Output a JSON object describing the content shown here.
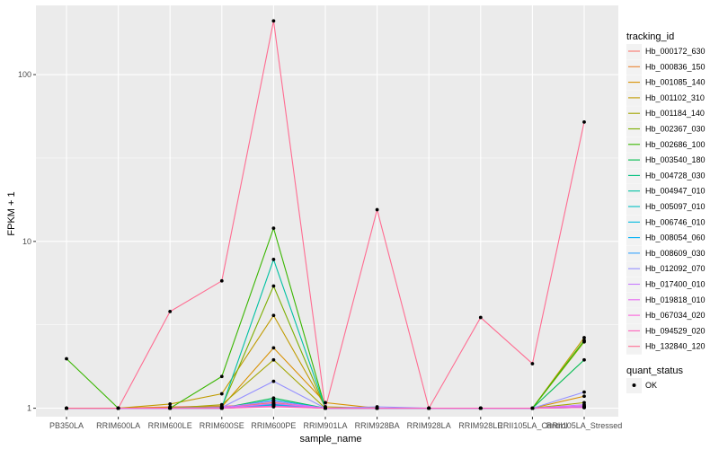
{
  "chart_data": {
    "type": "line",
    "xlabel": "sample_name",
    "ylabel": "FPKM + 1",
    "yscale": "log10",
    "ylim": [
      0.89,
      260
    ],
    "yticks": [
      1,
      10,
      100
    ],
    "ytick_labels": [
      "1",
      "10",
      "100"
    ],
    "grid": true,
    "legend_position": "right",
    "categories": [
      "PB350LA",
      "RRIM600LA",
      "RRIM600LE",
      "RRIM600SE",
      "RRIM600PE",
      "RRIM901LA",
      "RRIM928BA",
      "RRIM928LA",
      "RRIM928LE",
      "RRII105LA_Control",
      "RRII105LA_Stressed"
    ],
    "legend_title": "tracking_id",
    "series": [
      {
        "name": "Hb_000172_630",
        "color": "#F8766D",
        "values": [
          1,
          1,
          1.02,
          1.03,
          1.05,
          1,
          1,
          1,
          1,
          1,
          1.03
        ]
      },
      {
        "name": "Hb_000836_150",
        "color": "#EA8331",
        "values": [
          1,
          1,
          1,
          1.01,
          1.08,
          1,
          1,
          1,
          1,
          1,
          1.02
        ]
      },
      {
        "name": "Hb_001085_140",
        "color": "#D89000",
        "values": [
          1,
          1,
          1.01,
          1.02,
          2.3,
          1.08,
          1,
          1,
          1,
          1,
          1.18
        ]
      },
      {
        "name": "Hb_001102_310",
        "color": "#C09B00",
        "values": [
          1,
          1,
          1.06,
          1.22,
          3.6,
          1.02,
          1,
          1,
          1,
          1,
          2.65
        ]
      },
      {
        "name": "Hb_001184_140",
        "color": "#A3A500",
        "values": [
          1,
          1,
          1,
          1.05,
          1.95,
          1,
          1,
          1,
          1,
          1,
          1.08
        ]
      },
      {
        "name": "Hb_002367_030",
        "color": "#7CAE00",
        "values": [
          1,
          1,
          1,
          1.02,
          5.4,
          1,
          1,
          1,
          1,
          1,
          2.5
        ]
      },
      {
        "name": "Hb_002686_100",
        "color": "#39B600",
        "values": [
          1.98,
          1,
          1,
          1.55,
          12,
          1,
          1,
          1,
          1,
          1,
          2.55
        ]
      },
      {
        "name": "Hb_003540_180",
        "color": "#00BB4E",
        "values": [
          1,
          1,
          1,
          1,
          1.15,
          1,
          1,
          1,
          1,
          1,
          1.95
        ]
      },
      {
        "name": "Hb_004728_030",
        "color": "#00BF7D",
        "values": [
          1,
          1,
          1,
          1,
          1.05,
          1,
          1,
          1,
          1,
          1,
          1.02
        ]
      },
      {
        "name": "Hb_004947_010",
        "color": "#00C1A3",
        "values": [
          1,
          1,
          1,
          1.01,
          7.8,
          1,
          1,
          1,
          1,
          1,
          1.02
        ]
      },
      {
        "name": "Hb_005097_010",
        "color": "#00BFC4",
        "values": [
          1,
          1,
          1,
          1,
          1.03,
          1,
          1,
          1,
          1,
          1,
          1.01
        ]
      },
      {
        "name": "Hb_006746_010",
        "color": "#00BAE0",
        "values": [
          1,
          1,
          1,
          1,
          1.12,
          1,
          1,
          1,
          1,
          1,
          1.02
        ]
      },
      {
        "name": "Hb_008054_060",
        "color": "#00B0F6",
        "values": [
          1,
          1,
          1,
          1,
          1.04,
          1,
          1,
          1,
          1,
          1,
          1.01
        ]
      },
      {
        "name": "Hb_008609_030",
        "color": "#35A2FF",
        "values": [
          1,
          1,
          1,
          1,
          1.06,
          1,
          1,
          1,
          1,
          1,
          1.02
        ]
      },
      {
        "name": "Hb_012092_070",
        "color": "#9590FF",
        "values": [
          1,
          1,
          1,
          1.01,
          1.45,
          1,
          1.02,
          1,
          1,
          1,
          1.25
        ]
      },
      {
        "name": "Hb_017400_010",
        "color": "#C77CFF",
        "values": [
          1,
          1,
          1,
          1.01,
          1.1,
          1,
          1,
          1,
          1,
          1,
          1.05
        ]
      },
      {
        "name": "Hb_019818_010",
        "color": "#E76BF3",
        "values": [
          1,
          1,
          1,
          1,
          1.07,
          1,
          1,
          1,
          1,
          1,
          1.03
        ]
      },
      {
        "name": "Hb_067034_020",
        "color": "#FA62DB",
        "values": [
          1,
          1,
          1,
          1,
          1.03,
          1,
          1,
          1,
          1,
          1,
          1.01
        ]
      },
      {
        "name": "Hb_094529_020",
        "color": "#FF62BC",
        "values": [
          1,
          1,
          1,
          1,
          1.02,
          1,
          1,
          1,
          1,
          1,
          1.01
        ]
      },
      {
        "name": "Hb_132840_120",
        "color": "#FF6C91",
        "values": [
          1,
          1,
          3.8,
          5.8,
          210,
          1,
          15.5,
          1,
          3.5,
          1.85,
          52
        ]
      }
    ],
    "shape_legend_title": "quant_status",
    "shape_legend_items": [
      {
        "label": "OK"
      }
    ],
    "panel_background": "#EBEBEB",
    "grid_color": "#FFFFFF"
  }
}
